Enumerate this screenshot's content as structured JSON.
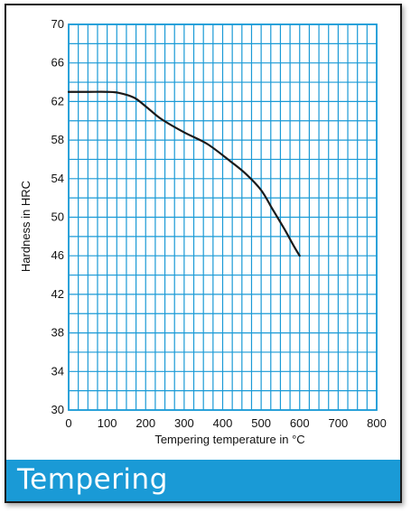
{
  "chart_data": {
    "type": "line",
    "title": "Tempering",
    "xlabel": "Tempering temperature in °C",
    "ylabel": "Hardness in HRC",
    "xlim": [
      0,
      800
    ],
    "ylim": [
      30,
      70
    ],
    "x_ticks": [
      0,
      100,
      200,
      300,
      400,
      500,
      600,
      700,
      800
    ],
    "y_ticks": [
      30,
      34,
      38,
      42,
      46,
      50,
      54,
      58,
      62,
      66,
      70
    ],
    "grid": true,
    "grid_color": "#1a9ad6",
    "line_color": "#1a1a1a",
    "accent_color": "#1a9ad6",
    "series": [
      {
        "x": [
          0,
          50,
          100,
          130,
          170,
          200,
          240,
          300,
          360,
          420,
          460,
          500,
          530,
          560,
          585,
          600
        ],
        "y": [
          63,
          63,
          63,
          62.9,
          62.4,
          61.5,
          60.2,
          58.8,
          57.6,
          55.8,
          54.5,
          52.8,
          50.8,
          48.8,
          47,
          46
        ]
      }
    ]
  }
}
